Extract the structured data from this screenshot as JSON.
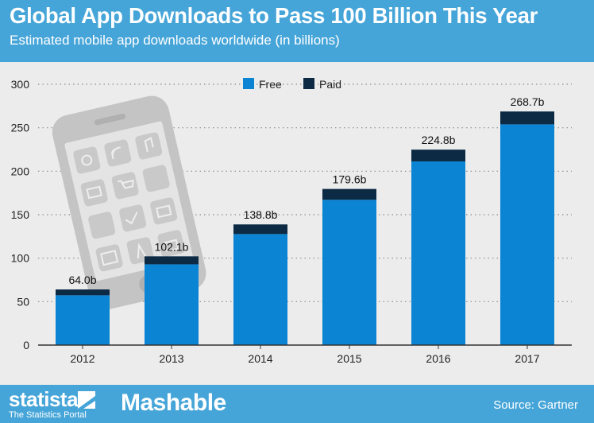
{
  "header": {
    "title": "Global App Downloads to Pass 100 Billion This Year",
    "subtitle": "Estimated mobile app downloads worldwide (in billions)"
  },
  "footer": {
    "brand": "statista",
    "tagline": "The Statistics Portal",
    "partner": "Mashable",
    "source": "Source: Gartner"
  },
  "colors": {
    "free": "#0b84d4",
    "paid": "#0c2a44",
    "header_bg": "#46a5d8",
    "plot_bg": "#ececec",
    "phone_watermark": "#c9c9c9"
  },
  "chart_data": {
    "type": "bar",
    "stacked": true,
    "title": "Global App Downloads to Pass 100 Billion This Year",
    "subtitle": "Estimated mobile app downloads worldwide (in billions)",
    "xlabel": "",
    "ylabel": "",
    "ylim": [
      0,
      300
    ],
    "yticks": [
      0,
      50,
      100,
      150,
      200,
      250,
      300
    ],
    "grid": true,
    "legend_position": "top-center",
    "categories": [
      "2012",
      "2013",
      "2014",
      "2015",
      "2016",
      "2017"
    ],
    "series": [
      {
        "name": "Free",
        "values": [
          57.3,
          92.9,
          127.7,
          167.1,
          211.3,
          253.9
        ]
      },
      {
        "name": "Paid",
        "values": [
          6.7,
          9.2,
          11.1,
          12.5,
          13.5,
          14.8
        ]
      }
    ],
    "totals": [
      64.0,
      102.1,
      138.8,
      179.6,
      224.8,
      268.7
    ],
    "data_labels": [
      "64.0b",
      "102.1b",
      "138.8b",
      "179.6b",
      "224.8b",
      "268.7b"
    ]
  }
}
